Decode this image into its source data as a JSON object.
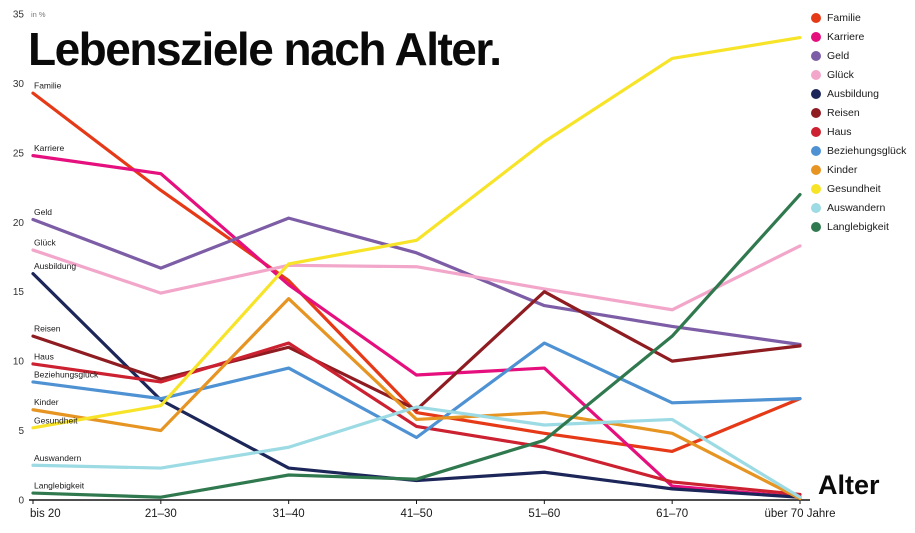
{
  "title": "Lebensziele nach Alter.",
  "chart_data": {
    "type": "line",
    "title": "Lebensziele nach Alter.",
    "xlabel": "Alter",
    "ylabel": "in %",
    "ylim": [
      0,
      35
    ],
    "y_ticks": [
      0,
      5,
      10,
      15,
      20,
      25,
      30,
      35
    ],
    "grid": false,
    "legend_position": "top-right",
    "categories": [
      "bis 20",
      "21–30",
      "31–40",
      "41–50",
      "51–60",
      "61–70",
      "über 70 Jahre"
    ],
    "series": [
      {
        "name": "Familie",
        "color": "#e63917",
        "values": [
          29.3,
          22.3,
          15.8,
          6.3,
          4.8,
          3.5,
          7.3
        ]
      },
      {
        "name": "Karriere",
        "color": "#e50f7e",
        "values": [
          24.8,
          23.5,
          15.5,
          9.0,
          9.5,
          1.0,
          0.2
        ]
      },
      {
        "name": "Geld",
        "color": "#7d5da6",
        "values": [
          20.2,
          16.7,
          20.3,
          17.8,
          14.0,
          12.5,
          11.2
        ]
      },
      {
        "name": "Glück",
        "color": "#f2a6c9",
        "values": [
          18.0,
          14.9,
          16.9,
          16.8,
          15.2,
          13.7,
          18.3
        ]
      },
      {
        "name": "Ausbildung",
        "color": "#1c2659",
        "values": [
          16.3,
          7.2,
          2.3,
          1.4,
          2.0,
          0.8,
          0.2
        ]
      },
      {
        "name": "Reisen",
        "color": "#8e1c21",
        "values": [
          11.8,
          8.7,
          11.0,
          6.5,
          15.0,
          10.0,
          11.1
        ]
      },
      {
        "name": "Haus",
        "color": "#cc2130",
        "values": [
          9.8,
          8.5,
          11.3,
          5.3,
          3.8,
          1.3,
          0.4
        ]
      },
      {
        "name": "Beziehungsglück",
        "color": "#4e92d3",
        "values": [
          8.5,
          7.3,
          9.5,
          4.5,
          11.3,
          7.0,
          7.3
        ]
      },
      {
        "name": "Kinder",
        "color": "#e69523",
        "values": [
          6.5,
          5.0,
          14.5,
          5.8,
          6.3,
          4.8,
          0.1
        ]
      },
      {
        "name": "Gesundheit",
        "color": "#f7e428",
        "values": [
          5.2,
          6.8,
          17.0,
          18.7,
          25.8,
          31.8,
          33.3
        ]
      },
      {
        "name": "Auswandern",
        "color": "#9cdbe4",
        "values": [
          2.5,
          2.3,
          3.8,
          6.7,
          5.4,
          5.8,
          0.2
        ]
      },
      {
        "name": "Langlebigkeit",
        "color": "#30794f",
        "values": [
          0.5,
          0.2,
          1.8,
          1.5,
          4.3,
          11.8,
          22.0
        ]
      }
    ]
  }
}
